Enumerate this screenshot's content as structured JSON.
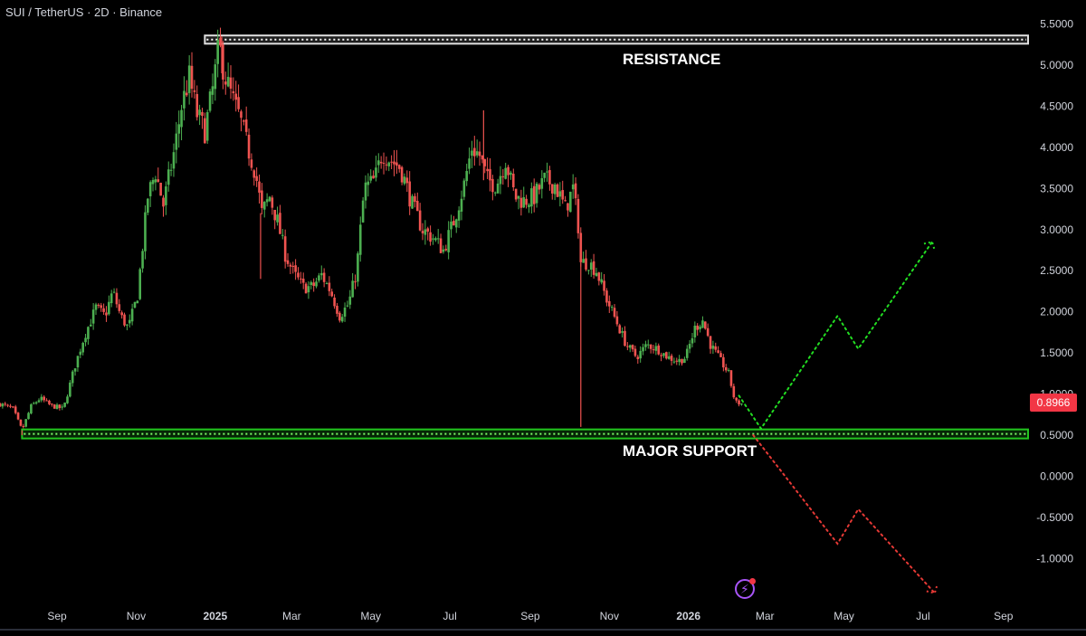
{
  "header": {
    "symbol_title": "SUI / TetherUS · 2D · Binance"
  },
  "colors": {
    "background": "#000000",
    "candle_up": "#4caf50",
    "candle_down": "#ef5350",
    "support_zone": "#22c51f",
    "resistance_zone": "#e0e0e0",
    "projection_bull": "#22dd22",
    "projection_bear": "#e53935",
    "last_price_bg": "#f23645",
    "axis_text": "#d1d4dc"
  },
  "annotations": {
    "resistance_label": "RESISTANCE",
    "support_label": "MAJOR SUPPORT"
  },
  "last_price": {
    "label": "0.8966",
    "value": 0.8966
  },
  "toolbar": {
    "lightning_icon": "lightning-icon"
  },
  "chart_data": {
    "type": "candlestick",
    "title": "SUI / TetherUS · 2D · Binance",
    "ylim": [
      -1.45,
      5.6
    ],
    "y_ticks": [
      5.5,
      5.0,
      4.5,
      4.0,
      3.5,
      3.0,
      2.5,
      2.0,
      1.5,
      1.0,
      0.5,
      0.0,
      -0.5,
      -1.0
    ],
    "y_tick_labels": [
      "5.5000",
      "5.0000",
      "4.5000",
      "4.0000",
      "3.5000",
      "3.0000",
      "2.5000",
      "2.0000",
      "1.5000",
      "1.0000",
      "0.5000",
      "0.0000",
      "-0.5000",
      "-1.0000"
    ],
    "x_ticks": [
      {
        "label": "Sep",
        "date": "2024-09-01"
      },
      {
        "label": "Nov",
        "date": "2024-11-01"
      },
      {
        "label": "2025",
        "date": "2025-01-01"
      },
      {
        "label": "Mar",
        "date": "2025-03-01"
      },
      {
        "label": "May",
        "date": "2025-05-01"
      },
      {
        "label": "Jul",
        "date": "2025-07-01"
      },
      {
        "label": "Sep",
        "date": "2025-09-01"
      },
      {
        "label": "Nov",
        "date": "2025-11-01"
      },
      {
        "label": "2026",
        "date": "2026-01-01"
      },
      {
        "label": "Mar",
        "date": "2026-03-01"
      },
      {
        "label": "May",
        "date": "2026-05-01"
      },
      {
        "label": "Jul",
        "date": "2026-07-01"
      },
      {
        "label": "Sep",
        "date": "2026-09-01"
      }
    ],
    "x_range": [
      "2024-07-19",
      "2026-09-20"
    ],
    "grid": false,
    "price_path": [
      [
        "2024-07-19",
        0.88
      ],
      [
        "2024-07-29",
        0.82
      ],
      [
        "2024-08-05",
        0.56
      ],
      [
        "2024-08-12",
        0.85
      ],
      [
        "2024-08-19",
        0.95
      ],
      [
        "2024-08-27",
        0.86
      ],
      [
        "2024-09-06",
        0.82
      ],
      [
        "2024-09-14",
        1.3
      ],
      [
        "2024-09-22",
        1.7
      ],
      [
        "2024-10-01",
        2.05
      ],
      [
        "2024-10-08",
        1.95
      ],
      [
        "2024-10-14",
        2.25
      ],
      [
        "2024-10-20",
        1.95
      ],
      [
        "2024-10-26",
        1.8
      ],
      [
        "2024-11-02",
        2.2
      ],
      [
        "2024-11-10",
        3.4
      ],
      [
        "2024-11-16",
        3.7
      ],
      [
        "2024-11-22",
        3.3
      ],
      [
        "2024-12-01",
        4.0
      ],
      [
        "2024-12-06",
        4.5
      ],
      [
        "2024-12-12",
        4.85
      ],
      [
        "2024-12-18",
        4.4
      ],
      [
        "2024-12-24",
        4.2
      ],
      [
        "2024-12-30",
        4.7
      ],
      [
        "2025-01-04",
        5.25
      ],
      [
        "2025-01-08",
        4.9
      ],
      [
        "2025-01-14",
        4.6
      ],
      [
        "2025-01-20",
        4.35
      ],
      [
        "2025-01-26",
        4.0
      ],
      [
        "2025-02-01",
        3.7
      ],
      [
        "2025-02-06",
        3.2
      ],
      [
        "2025-02-12",
        3.4
      ],
      [
        "2025-02-18",
        3.1
      ],
      [
        "2025-02-24",
        2.7
      ],
      [
        "2025-03-03",
        2.45
      ],
      [
        "2025-03-10",
        2.3
      ],
      [
        "2025-03-17",
        2.3
      ],
      [
        "2025-03-24",
        2.45
      ],
      [
        "2025-03-31",
        2.25
      ],
      [
        "2025-04-07",
        1.95
      ],
      [
        "2025-04-14",
        2.1
      ],
      [
        "2025-04-20",
        2.5
      ],
      [
        "2025-04-26",
        3.5
      ],
      [
        "2025-05-04",
        3.6
      ],
      [
        "2025-05-10",
        3.95
      ],
      [
        "2025-05-16",
        3.85
      ],
      [
        "2025-05-24",
        3.75
      ],
      [
        "2025-06-02",
        3.3
      ],
      [
        "2025-06-10",
        3.0
      ],
      [
        "2025-06-18",
        2.9
      ],
      [
        "2025-06-26",
        2.75
      ],
      [
        "2025-07-04",
        3.1
      ],
      [
        "2025-07-12",
        3.55
      ],
      [
        "2025-07-18",
        4.0
      ],
      [
        "2025-07-24",
        3.9
      ],
      [
        "2025-07-30",
        3.6
      ],
      [
        "2025-08-06",
        3.55
      ],
      [
        "2025-08-13",
        3.85
      ],
      [
        "2025-08-20",
        3.4
      ],
      [
        "2025-08-27",
        3.35
      ],
      [
        "2025-09-04",
        3.4
      ],
      [
        "2025-09-12",
        3.6
      ],
      [
        "2025-09-20",
        3.55
      ],
      [
        "2025-09-28",
        3.25
      ],
      [
        "2025-10-04",
        3.5
      ],
      [
        "2025-10-08",
        3.05
      ],
      [
        "2025-10-10",
        2.6
      ],
      [
        "2025-10-16",
        2.6
      ],
      [
        "2025-10-22",
        2.5
      ],
      [
        "2025-10-30",
        2.15
      ],
      [
        "2025-11-06",
        1.9
      ],
      [
        "2025-11-14",
        1.6
      ],
      [
        "2025-11-22",
        1.45
      ],
      [
        "2025-11-30",
        1.6
      ],
      [
        "2025-12-08",
        1.55
      ],
      [
        "2025-12-16",
        1.45
      ],
      [
        "2025-12-24",
        1.4
      ],
      [
        "2025-12-30",
        1.45
      ],
      [
        "2026-01-06",
        1.8
      ],
      [
        "2026-01-12",
        1.9
      ],
      [
        "2026-01-18",
        1.6
      ],
      [
        "2026-01-24",
        1.45
      ],
      [
        "2026-02-01",
        1.25
      ],
      [
        "2026-02-06",
        0.9
      ],
      [
        "2026-02-12",
        0.88
      ]
    ],
    "wick_spikes": [
      {
        "date": "2024-08-05",
        "low": 0.5
      },
      {
        "date": "2025-01-06",
        "high": 5.35
      },
      {
        "date": "2025-02-05",
        "low": 2.4
      },
      {
        "date": "2025-10-10",
        "low": 0.6
      },
      {
        "date": "2025-07-27",
        "high": 4.45
      }
    ],
    "zones": [
      {
        "name": "RESISTANCE",
        "low": 5.26,
        "high": 5.36,
        "start": "2024-12-24"
      },
      {
        "name": "MAJOR SUPPORT",
        "low": 0.46,
        "high": 0.57,
        "start": "2024-08-05"
      }
    ],
    "projections": [
      {
        "name": "bullish",
        "style": "dotted",
        "color": "#22dd22",
        "points": [
          [
            "2026-02-09",
            0.98
          ],
          [
            "2026-02-26",
            0.58
          ],
          [
            "2026-04-26",
            1.95
          ],
          [
            "2026-05-12",
            1.55
          ],
          [
            "2026-07-08",
            2.85
          ]
        ],
        "arrow_end": true
      },
      {
        "name": "bearish",
        "style": "dotted",
        "color": "#e53935",
        "points": [
          [
            "2026-02-20",
            0.5
          ],
          [
            "2026-04-26",
            -0.82
          ],
          [
            "2026-05-12",
            -0.4
          ],
          [
            "2026-07-10",
            -1.42
          ]
        ],
        "arrow_end": true
      }
    ]
  }
}
